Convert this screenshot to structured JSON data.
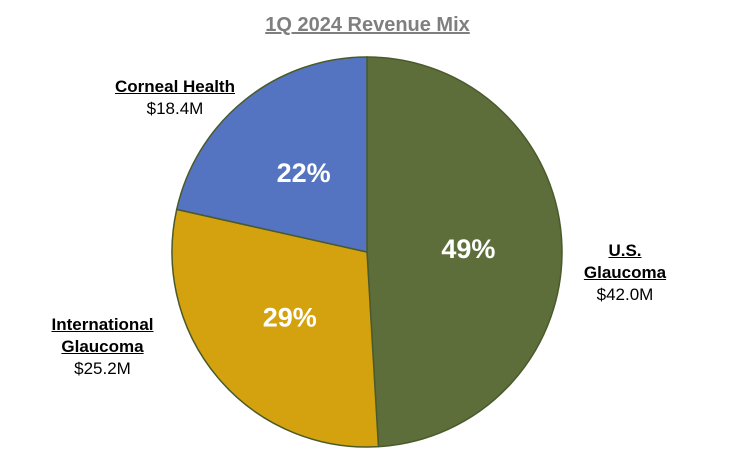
{
  "chart_data": {
    "type": "pie",
    "title": "1Q 2024 Revenue Mix",
    "slices": [
      {
        "name_lines": [
          "U.S.",
          "Glaucoma"
        ],
        "value": 42.0,
        "amount_label": "$42.0M",
        "percent_label": "49%",
        "color": "#5e6e3a"
      },
      {
        "name_lines": [
          "International",
          "Glaucoma"
        ],
        "value": 25.2,
        "amount_label": "$25.2M",
        "percent_label": "29%",
        "color": "#d4a20e"
      },
      {
        "name_lines": [
          "Corneal Health"
        ],
        "value": 18.4,
        "amount_label": "$18.4M",
        "percent_label": "22%",
        "color": "#5473c0"
      }
    ],
    "start": "12 o'clock",
    "direction": "clockwise",
    "slice_border_color": "#4a5a2b"
  }
}
